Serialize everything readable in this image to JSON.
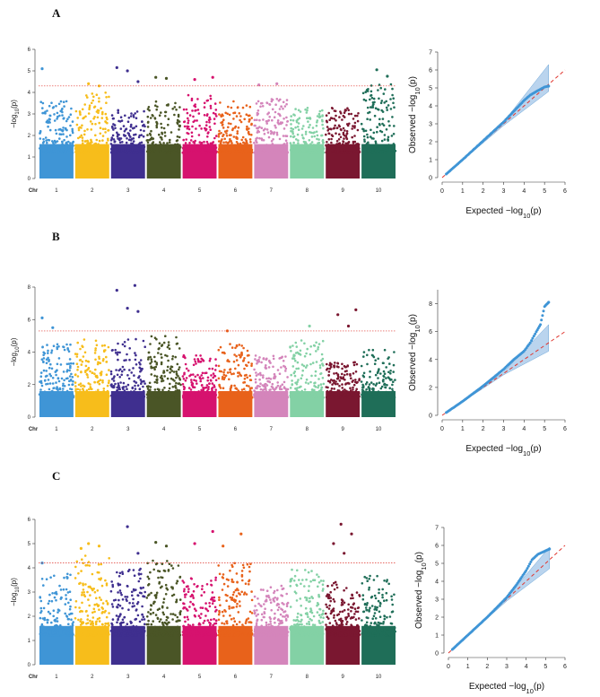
{
  "panels": [
    {
      "label": "A",
      "manhattan": {
        "type": "scatter",
        "x_axis_label": "Chr",
        "y_axis_label_pre": "−log",
        "y_axis_label_sub": "10",
        "y_axis_label_post": "(p)",
        "ylim": [
          0,
          6
        ],
        "yticks": [
          0,
          1,
          2,
          3,
          4,
          5,
          6
        ],
        "threshold": 4.3,
        "chromosomes": [
          "1",
          "2",
          "3",
          "4",
          "5",
          "6",
          "7",
          "8",
          "9",
          "10"
        ],
        "chromosome_colors": [
          "#3f95d6",
          "#f7bd1b",
          "#3f2f8f",
          "#4a5526",
          "#d6126e",
          "#e8621b",
          "#d485bb",
          "#83d1a5",
          "#7a1730",
          "#1f6e58"
        ],
        "bulk_max": [
          3.6,
          4.0,
          3.3,
          3.6,
          3.9,
          3.6,
          3.7,
          3.3,
          3.3,
          4.4
        ],
        "peaks": [
          {
            "chr": "1",
            "value": 5.1
          },
          {
            "chr": "2",
            "value": 4.4
          },
          {
            "chr": "2",
            "value": 4.3
          },
          {
            "chr": "3",
            "value": 5.15
          },
          {
            "chr": "3",
            "value": 5.0
          },
          {
            "chr": "3",
            "value": 4.5
          },
          {
            "chr": "4",
            "value": 4.7
          },
          {
            "chr": "4",
            "value": 4.65
          },
          {
            "chr": "5",
            "value": 4.7
          },
          {
            "chr": "5",
            "value": 4.6
          },
          {
            "chr": "7",
            "value": 4.4
          },
          {
            "chr": "7",
            "value": 4.35
          },
          {
            "chr": "10",
            "value": 5.05
          },
          {
            "chr": "10",
            "value": 4.75
          }
        ]
      },
      "qq": {
        "type": "scatter",
        "xlabel_pre": "Expected  −log",
        "xlabel_sub": "10",
        "xlabel_post": "(p)",
        "ylabel_pre": "Observed  −log",
        "ylabel_sub": "10",
        "ylabel_post": "(p)",
        "xlim": [
          0,
          6
        ],
        "ylim": [
          0,
          7
        ],
        "xticks": [
          0,
          1,
          2,
          3,
          4,
          5,
          6
        ],
        "yticks": [
          0,
          1,
          2,
          3,
          4,
          5,
          6,
          7
        ],
        "points": [
          [
            0.2,
            0.2
          ],
          [
            1,
            1
          ],
          [
            2,
            2.05
          ],
          [
            3,
            3.1
          ],
          [
            3.5,
            3.7
          ],
          [
            4,
            4.3
          ],
          [
            4.3,
            4.6
          ],
          [
            4.6,
            4.8
          ],
          [
            5.0,
            5.05
          ],
          [
            5.2,
            5.1
          ]
        ],
        "ci_upper_end": 6.3,
        "ci_lower_end": 4.8
      }
    },
    {
      "label": "B",
      "manhattan": {
        "type": "scatter",
        "x_axis_label": "Chr",
        "y_axis_label_pre": "−log",
        "y_axis_label_sub": "10",
        "y_axis_label_post": "(p)",
        "ylim": [
          0,
          8
        ],
        "yticks": [
          0,
          2,
          4,
          6,
          8
        ],
        "threshold": 5.3,
        "chromosomes": [
          "1",
          "2",
          "3",
          "4",
          "5",
          "6",
          "7",
          "8",
          "9",
          "10"
        ],
        "chromosome_colors": [
          "#3f95d6",
          "#f7bd1b",
          "#3f2f8f",
          "#4a5526",
          "#d6126e",
          "#e8621b",
          "#d485bb",
          "#83d1a5",
          "#7a1730",
          "#1f6e58"
        ],
        "bulk_max": [
          4.5,
          4.8,
          4.8,
          5.0,
          3.8,
          4.5,
          3.8,
          4.8,
          3.4,
          4.2
        ],
        "peaks": [
          {
            "chr": "1",
            "value": 6.1
          },
          {
            "chr": "1",
            "value": 5.5
          },
          {
            "chr": "3",
            "value": 8.1
          },
          {
            "chr": "3",
            "value": 7.8
          },
          {
            "chr": "3",
            "value": 6.7
          },
          {
            "chr": "3",
            "value": 6.5
          },
          {
            "chr": "6",
            "value": 5.3
          },
          {
            "chr": "8",
            "value": 5.6
          },
          {
            "chr": "9",
            "value": 6.6
          },
          {
            "chr": "9",
            "value": 6.3
          },
          {
            "chr": "9",
            "value": 5.6
          }
        ]
      },
      "qq": {
        "type": "scatter",
        "xlabel_pre": "Expected  −log",
        "xlabel_sub": "10",
        "xlabel_post": "(p)",
        "ylabel_pre": "Observed  −log",
        "ylabel_sub": "10",
        "ylabel_post": "(p)",
        "xlim": [
          0,
          6
        ],
        "ylim": [
          0,
          9
        ],
        "xticks": [
          0,
          1,
          2,
          3,
          4,
          5,
          6
        ],
        "yticks": [
          0,
          2,
          4,
          6,
          8
        ],
        "points": [
          [
            0.2,
            0.2
          ],
          [
            1,
            1
          ],
          [
            2,
            2.1
          ],
          [
            3,
            3.3
          ],
          [
            3.5,
            4.0
          ],
          [
            4,
            4.6
          ],
          [
            4.3,
            5.2
          ],
          [
            4.6,
            6.0
          ],
          [
            4.8,
            6.5
          ],
          [
            5.0,
            7.8
          ],
          [
            5.2,
            8.1
          ]
        ],
        "ci_upper_end": 6.5,
        "ci_lower_end": 4.6
      }
    },
    {
      "label": "C",
      "manhattan": {
        "type": "scatter",
        "x_axis_label": "Chr",
        "y_axis_label_pre": "−log",
        "y_axis_label_sub": "10",
        "y_axis_label_post": "(p)",
        "ylim": [
          0,
          6
        ],
        "yticks": [
          0,
          1,
          2,
          3,
          4,
          5,
          6
        ],
        "threshold": 4.2,
        "chromosomes": [
          "1",
          "2",
          "3",
          "4",
          "5",
          "6",
          "7",
          "8",
          "9",
          "10"
        ],
        "chromosome_colors": [
          "#3f95d6",
          "#f7bd1b",
          "#3f2f8f",
          "#4a5526",
          "#d6126e",
          "#e8621b",
          "#d485bb",
          "#83d1a5",
          "#7a1730",
          "#1f6e58"
        ],
        "bulk_max": [
          3.8,
          4.5,
          4.0,
          4.3,
          3.6,
          4.2,
          3.3,
          4.0,
          3.5,
          3.7
        ],
        "peaks": [
          {
            "chr": "1",
            "value": 4.2
          },
          {
            "chr": "2",
            "value": 5.0
          },
          {
            "chr": "2",
            "value": 4.9
          },
          {
            "chr": "2",
            "value": 4.8
          },
          {
            "chr": "3",
            "value": 5.7
          },
          {
            "chr": "3",
            "value": 4.6
          },
          {
            "chr": "4",
            "value": 5.05
          },
          {
            "chr": "4",
            "value": 4.9
          },
          {
            "chr": "5",
            "value": 5.5
          },
          {
            "chr": "5",
            "value": 5.0
          },
          {
            "chr": "6",
            "value": 5.4
          },
          {
            "chr": "6",
            "value": 4.9
          },
          {
            "chr": "9",
            "value": 5.8
          },
          {
            "chr": "9",
            "value": 5.4
          },
          {
            "chr": "9",
            "value": 5.0
          },
          {
            "chr": "9",
            "value": 4.6
          }
        ]
      },
      "qq": {
        "type": "scatter",
        "xlabel_pre": "Expected  −log",
        "xlabel_sub": "10",
        "xlabel_post": "(p)",
        "ylabel_pre": "Observed  −log",
        "ylabel_sub": "10",
        "ylabel_post": "(p)",
        "xlim": [
          0,
          6
        ],
        "ylim": [
          0,
          7
        ],
        "xticks": [
          0,
          1,
          2,
          3,
          4,
          5,
          6
        ],
        "yticks": [
          0,
          1,
          2,
          3,
          4,
          5,
          6,
          7
        ],
        "points": [
          [
            0.2,
            0.2
          ],
          [
            1,
            1
          ],
          [
            2,
            2.0
          ],
          [
            3,
            3.1
          ],
          [
            3.5,
            3.8
          ],
          [
            4,
            4.6
          ],
          [
            4.3,
            5.2
          ],
          [
            4.6,
            5.5
          ],
          [
            5.0,
            5.7
          ],
          [
            5.2,
            5.8
          ]
        ],
        "ci_upper_end": 5.9,
        "ci_lower_end": 4.7
      }
    }
  ],
  "chart_data": [
    {
      "type": "scatter",
      "panel": "A",
      "subtype": "manhattan",
      "ylim": [
        0,
        6
      ],
      "threshold": 4.3,
      "categories": [
        "1",
        "2",
        "3",
        "4",
        "5",
        "6",
        "7",
        "8",
        "9",
        "10"
      ],
      "top_values": [
        5.1,
        4.4,
        5.15,
        4.7,
        4.7,
        3.6,
        4.4,
        3.3,
        3.3,
        5.05
      ]
    },
    {
      "type": "scatter",
      "panel": "A",
      "subtype": "qq",
      "xlim": [
        0,
        6
      ],
      "ylim": [
        0,
        7
      ]
    },
    {
      "type": "scatter",
      "panel": "B",
      "subtype": "manhattan",
      "ylim": [
        0,
        8
      ],
      "threshold": 5.3,
      "categories": [
        "1",
        "2",
        "3",
        "4",
        "5",
        "6",
        "7",
        "8",
        "9",
        "10"
      ],
      "top_values": [
        6.1,
        4.8,
        8.1,
        5.0,
        3.8,
        5.3,
        3.8,
        5.6,
        6.6,
        4.2
      ]
    },
    {
      "type": "scatter",
      "panel": "B",
      "subtype": "qq",
      "xlim": [
        0,
        6
      ],
      "ylim": [
        0,
        9
      ]
    },
    {
      "type": "scatter",
      "panel": "C",
      "subtype": "manhattan",
      "ylim": [
        0,
        6
      ],
      "threshold": 4.2,
      "categories": [
        "1",
        "2",
        "3",
        "4",
        "5",
        "6",
        "7",
        "8",
        "9",
        "10"
      ],
      "top_values": [
        4.2,
        5.0,
        5.7,
        5.05,
        5.5,
        5.4,
        3.3,
        4.0,
        5.8,
        3.7
      ]
    },
    {
      "type": "scatter",
      "panel": "C",
      "subtype": "qq",
      "xlim": [
        0,
        6
      ],
      "ylim": [
        0,
        7
      ]
    }
  ]
}
